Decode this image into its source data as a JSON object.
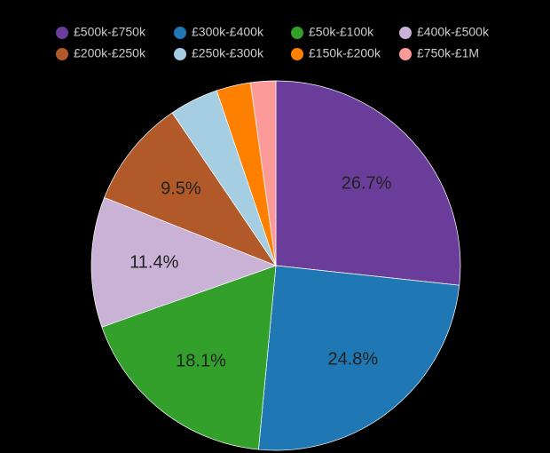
{
  "chart_data": {
    "type": "pie",
    "categories": [
      "£500k-£750k",
      "£300k-£400k",
      "£50k-£100k",
      "£400k-£500k",
      "£200k-£250k",
      "£250k-£300k",
      "£150k-£200k",
      "£750k-£1M"
    ],
    "values": [
      26.7,
      24.8,
      18.1,
      11.4,
      9.5,
      4.3,
      3.0,
      2.2
    ],
    "value_labels": [
      "26.7%",
      "24.8%",
      "18.1%",
      "11.4%",
      "9.5%",
      null,
      null,
      null
    ],
    "colors": [
      "#6a3d9a",
      "#1f78b4",
      "#33a02c",
      "#cab2d6",
      "#b15928",
      "#a6cee3",
      "#ff7f00",
      "#fb9a99"
    ]
  }
}
